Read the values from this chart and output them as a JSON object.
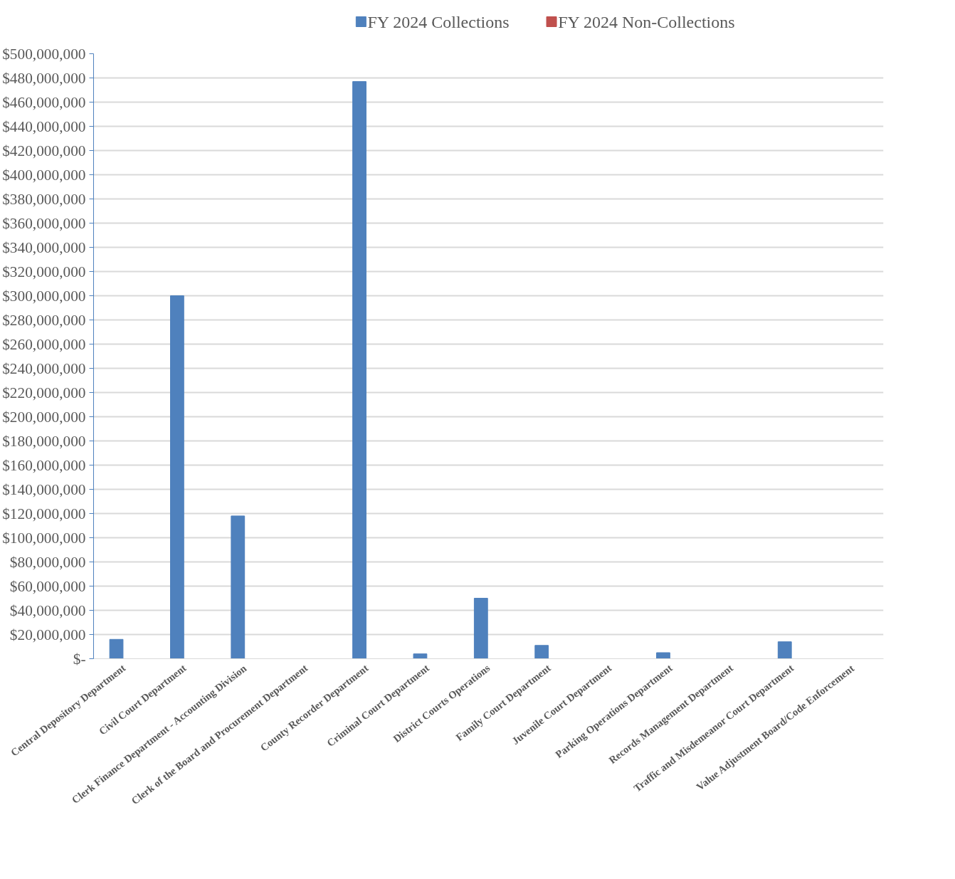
{
  "chart_data": {
    "type": "bar",
    "categories": [
      "Central Depository Department",
      "Civil Court Department",
      "Clerk Finance Department - Accounting Division",
      "Clerk of the Board and Procurement Department",
      "County Recorder Department",
      "Criminal Court Department",
      "District Courts Operations",
      "Family Court Department",
      "Juvenile Court Department",
      "Parking Operations Department",
      "Records Management Department",
      "Traffic and Misdemeanor Court Department",
      "Value Adjustment Board/Code Enforcement"
    ],
    "series": [
      {
        "name": "FY 2024 Collections",
        "color": "#4f81bd",
        "values": [
          16000000,
          300000000,
          118000000,
          0,
          477000000,
          4000000,
          50000000,
          11000000,
          0,
          5000000,
          0,
          14000000,
          null
        ]
      },
      {
        "name": "FY 2024 Non-Collections",
        "color": "#c0504d",
        "values": [
          0,
          null,
          0,
          0,
          0,
          0,
          0,
          null,
          0,
          0,
          0,
          0,
          0
        ]
      }
    ],
    "ylim": [
      0,
      500000000
    ],
    "yticks": [
      {
        "value": 0,
        "label": "$-"
      },
      {
        "value": 20000000,
        "label": "$20,000,000"
      },
      {
        "value": 40000000,
        "label": "$40,000,000"
      },
      {
        "value": 60000000,
        "label": "$60,000,000"
      },
      {
        "value": 80000000,
        "label": "$80,000,000"
      },
      {
        "value": 100000000,
        "label": "$100,000,000"
      },
      {
        "value": 120000000,
        "label": "$120,000,000"
      },
      {
        "value": 140000000,
        "label": "$140,000,000"
      },
      {
        "value": 160000000,
        "label": "$160,000,000"
      },
      {
        "value": 180000000,
        "label": "$180,000,000"
      },
      {
        "value": 200000000,
        "label": "$200,000,000"
      },
      {
        "value": 220000000,
        "label": "$220,000,000"
      },
      {
        "value": 240000000,
        "label": "$240,000,000"
      },
      {
        "value": 260000000,
        "label": "$260,000,000"
      },
      {
        "value": 280000000,
        "label": "$280,000,000"
      },
      {
        "value": 300000000,
        "label": "$300,000,000"
      },
      {
        "value": 320000000,
        "label": "$320,000,000"
      },
      {
        "value": 340000000,
        "label": "$340,000,000"
      },
      {
        "value": 360000000,
        "label": "$360,000,000"
      },
      {
        "value": 380000000,
        "label": "$380,000,000"
      },
      {
        "value": 400000000,
        "label": "$400,000,000"
      },
      {
        "value": 420000000,
        "label": "$420,000,000"
      },
      {
        "value": 440000000,
        "label": "$440,000,000"
      },
      {
        "value": 460000000,
        "label": "$460,000,000"
      },
      {
        "value": 480000000,
        "label": "$480,000,000"
      },
      {
        "value": 500000000,
        "label": "$500,000,000"
      }
    ],
    "grid": "y",
    "legend": "top"
  }
}
